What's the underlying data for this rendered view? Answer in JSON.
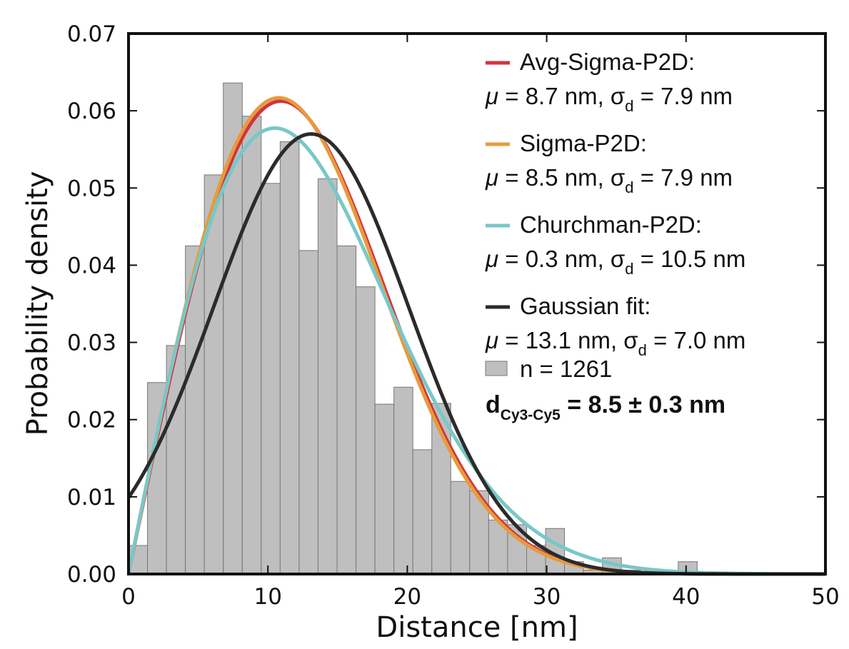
{
  "chart_data": {
    "type": "bar",
    "xlabel": "Distance [nm]",
    "ylabel": "Probability density",
    "xlim": [
      0,
      50
    ],
    "ylim": [
      0,
      0.07
    ],
    "x_ticks": [
      "0",
      "10",
      "20",
      "30",
      "40",
      "50"
    ],
    "y_ticks": [
      "0.00",
      "0.01",
      "0.02",
      "0.03",
      "0.04",
      "0.05",
      "0.06",
      "0.07"
    ],
    "grid": false,
    "legend_position": "top-right",
    "histogram": {
      "name": "n = 1261",
      "color": "#bfbfbf",
      "bin_edges": [
        0,
        1.36,
        2.72,
        4.08,
        5.44,
        6.8,
        8.16,
        9.52,
        10.88,
        12.24,
        13.6,
        14.96,
        16.32,
        17.68,
        19.04,
        20.4,
        21.76,
        23.12,
        24.48,
        25.84,
        27.2,
        28.56,
        29.92,
        31.28,
        32.64,
        34.0,
        35.36,
        36.72,
        38.08,
        39.44,
        40.8
      ],
      "values": [
        0.0037,
        0.0248,
        0.0296,
        0.0425,
        0.0517,
        0.0636,
        0.0593,
        0.0506,
        0.056,
        0.0419,
        0.0512,
        0.0425,
        0.0372,
        0.022,
        0.0242,
        0.0161,
        0.0221,
        0.012,
        0.0108,
        0.007,
        0.0064,
        0.0037,
        0.0059,
        0.0016,
        0.0005,
        0.0021,
        0.0005,
        0.0,
        0.0,
        0.0016
      ]
    },
    "series": [
      {
        "name": "Avg-Sigma-P2D:",
        "model": "p2d",
        "mu": 8.7,
        "sigma": 7.9,
        "color": "#d0353c"
      },
      {
        "name": "Sigma-P2D:",
        "model": "p2d",
        "mu": 8.5,
        "sigma": 7.9,
        "color": "#e89a3c"
      },
      {
        "name": "Churchman-P2D:",
        "model": "p2d",
        "mu": 0.3,
        "sigma": 10.5,
        "color": "#79c7c8"
      },
      {
        "name": "Gaussian fit:",
        "model": "gaussian",
        "mu": 13.1,
        "sigma": 7.0,
        "color": "#2b2b2b"
      }
    ],
    "legend": [
      {
        "label": "Avg-Sigma-P2D:",
        "mu_text": "8.7 nm",
        "sigma_text": "7.9 nm"
      },
      {
        "label": "Sigma-P2D:",
        "mu_text": "8.5 nm",
        "sigma_text": "7.9 nm"
      },
      {
        "label": "Churchman-P2D:",
        "mu_text": "0.3 nm",
        "sigma_text": "10.5 nm"
      },
      {
        "label": "Gaussian fit:",
        "mu_text": "13.1 nm",
        "sigma_text": "7.0 nm"
      }
    ],
    "histogram_label": "n = 1261",
    "annotation": {
      "main": "d",
      "subscript": "Cy3-Cy5",
      "value": "= 8.5 ± 0.3 nm"
    }
  }
}
